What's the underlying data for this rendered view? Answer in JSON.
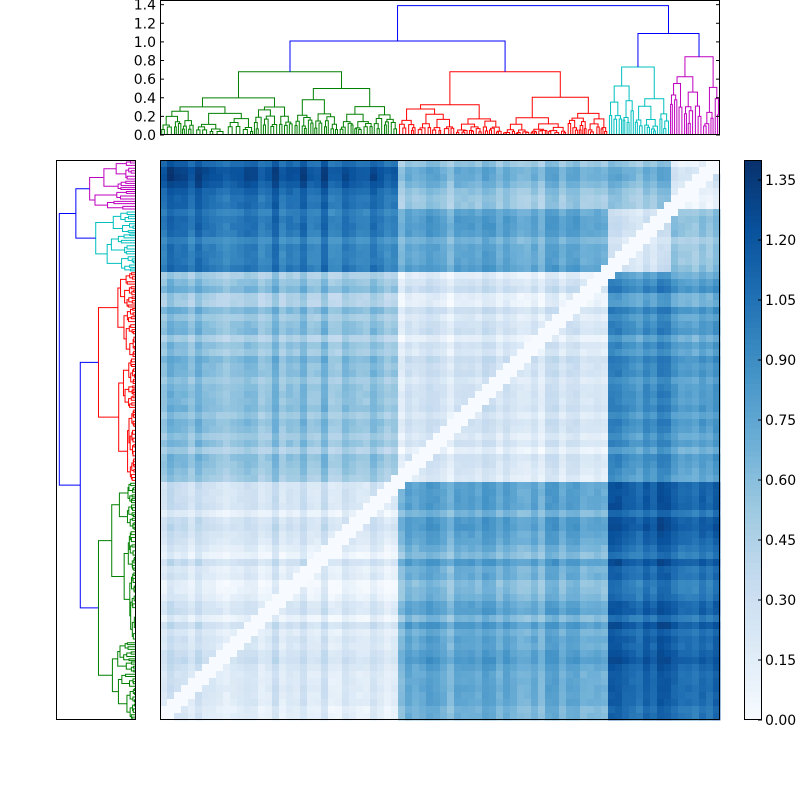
{
  "chart_data": [
    {
      "type": "dendrogram",
      "orientation": "top",
      "ylim": [
        0.0,
        1.45
      ],
      "yticks": [
        "0.0",
        "0.2",
        "0.4",
        "0.6",
        "0.8",
        "1.0",
        "1.2",
        "1.4"
      ],
      "ytick_values": [
        0.0,
        0.2,
        0.4,
        0.6,
        0.8,
        1.0,
        1.2,
        1.4
      ],
      "clusters": [
        {
          "color": "#008000",
          "leaf_range": [
            0,
            0.425
          ],
          "height": 0.68
        },
        {
          "color": "#ff0000",
          "leaf_range": [
            0.425,
            0.8
          ],
          "height": 0.68
        },
        {
          "color": "#00bfbf",
          "leaf_range": [
            0.8,
            0.91
          ],
          "height": 0.73
        },
        {
          "color": "#bf00bf",
          "leaf_range": [
            0.91,
            1.0
          ],
          "height": 0.84
        }
      ],
      "link_color": "#0000ff",
      "merges": [
        {
          "name": "green-red",
          "height": 1.01
        },
        {
          "name": "cyan-magenta",
          "height": 1.09
        },
        {
          "name": "root",
          "height": 1.39
        }
      ]
    },
    {
      "type": "dendrogram",
      "orientation": "left",
      "clusters": [
        {
          "color": "#bf00bf",
          "leaf_range": [
            0,
            0.09
          ]
        },
        {
          "color": "#00bfbf",
          "leaf_range": [
            0.09,
            0.2
          ]
        },
        {
          "color": "#ff0000",
          "leaf_range": [
            0.2,
            0.575
          ]
        },
        {
          "color": "#008000",
          "leaf_range": [
            0.575,
            1.0
          ]
        }
      ],
      "link_color": "#0000ff"
    },
    {
      "type": "heatmap",
      "description_free": true,
      "value_range": [
        0.0,
        1.4
      ],
      "colormap": "Blues",
      "colorbar_ticks": [
        "0.00",
        "0.15",
        "0.30",
        "0.45",
        "0.60",
        "0.75",
        "0.90",
        "1.05",
        "1.20",
        "1.35"
      ],
      "colorbar_tick_values": [
        0.0,
        0.15,
        0.3,
        0.45,
        0.6,
        0.75,
        0.9,
        1.05,
        1.2,
        1.35
      ],
      "col_clusters": [
        {
          "name": "green",
          "range": [
            0,
            0.425
          ]
        },
        {
          "name": "red",
          "range": [
            0.425,
            0.8
          ]
        },
        {
          "name": "cyan",
          "range": [
            0.8,
            0.91
          ]
        },
        {
          "name": "magenta",
          "range": [
            0.91,
            1.0
          ]
        }
      ],
      "row_clusters": [
        {
          "name": "magenta",
          "range": [
            0,
            0.09
          ]
        },
        {
          "name": "cyan",
          "range": [
            0.09,
            0.2
          ]
        },
        {
          "name": "red",
          "range": [
            0.2,
            0.575
          ]
        },
        {
          "name": "green",
          "range": [
            0.575,
            1.0
          ]
        }
      ],
      "block_values": {
        "magenta": {
          "green": 1.15,
          "red": 0.6,
          "cyan": 0.6,
          "magenta": 0.15
        },
        "cyan": {
          "green": 1.0,
          "red": 0.75,
          "cyan": 0.25,
          "magenta": 0.55
        },
        "red": {
          "green": 0.55,
          "red": 0.2,
          "cyan": 0.85,
          "magenta": 0.75
        },
        "green": {
          "green": 0.2,
          "red": 0.7,
          "cyan": 1.1,
          "magenta": 1.05
        }
      }
    }
  ]
}
